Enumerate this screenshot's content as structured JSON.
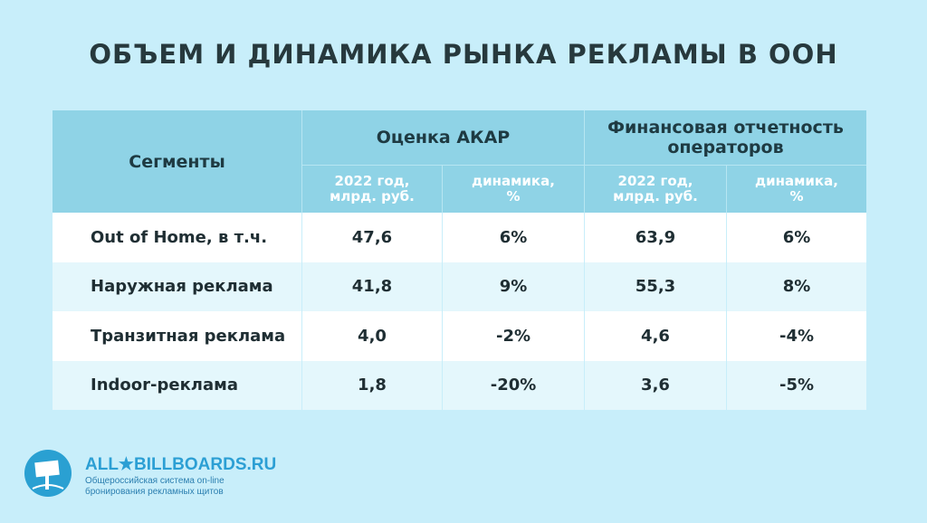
{
  "header": {
    "title": "ОБЪЕМ И ДИНАМИКА РЫНКА РЕКЛАМЫ В ООН"
  },
  "table": {
    "segment_header": "Сегменты",
    "groups": [
      "Оценка АКАР",
      "Финансовая отчетность операторов"
    ],
    "subheaders": [
      "2022 год, млрд. руб.",
      "динамика, %",
      "2022 год, млрд. руб.",
      "динамика, %"
    ],
    "rows": [
      [
        "Out of Home, в т.ч.",
        "47,6",
        "6%",
        "63,9",
        "6%"
      ],
      [
        "Наружная реклама",
        "41,8",
        "9%",
        "55,3",
        "8%"
      ],
      [
        "Транзитная реклама",
        "4,0",
        "-2%",
        "4,6",
        "-4%"
      ],
      [
        "Indoor-реклама",
        "1,8",
        "-20%",
        "3,6",
        "-5%"
      ]
    ]
  },
  "footer": {
    "logo": "ALL★BILLBOARDS.RU",
    "tagline": "Общероссийская система on-line бронирования рекламных щитов"
  }
}
